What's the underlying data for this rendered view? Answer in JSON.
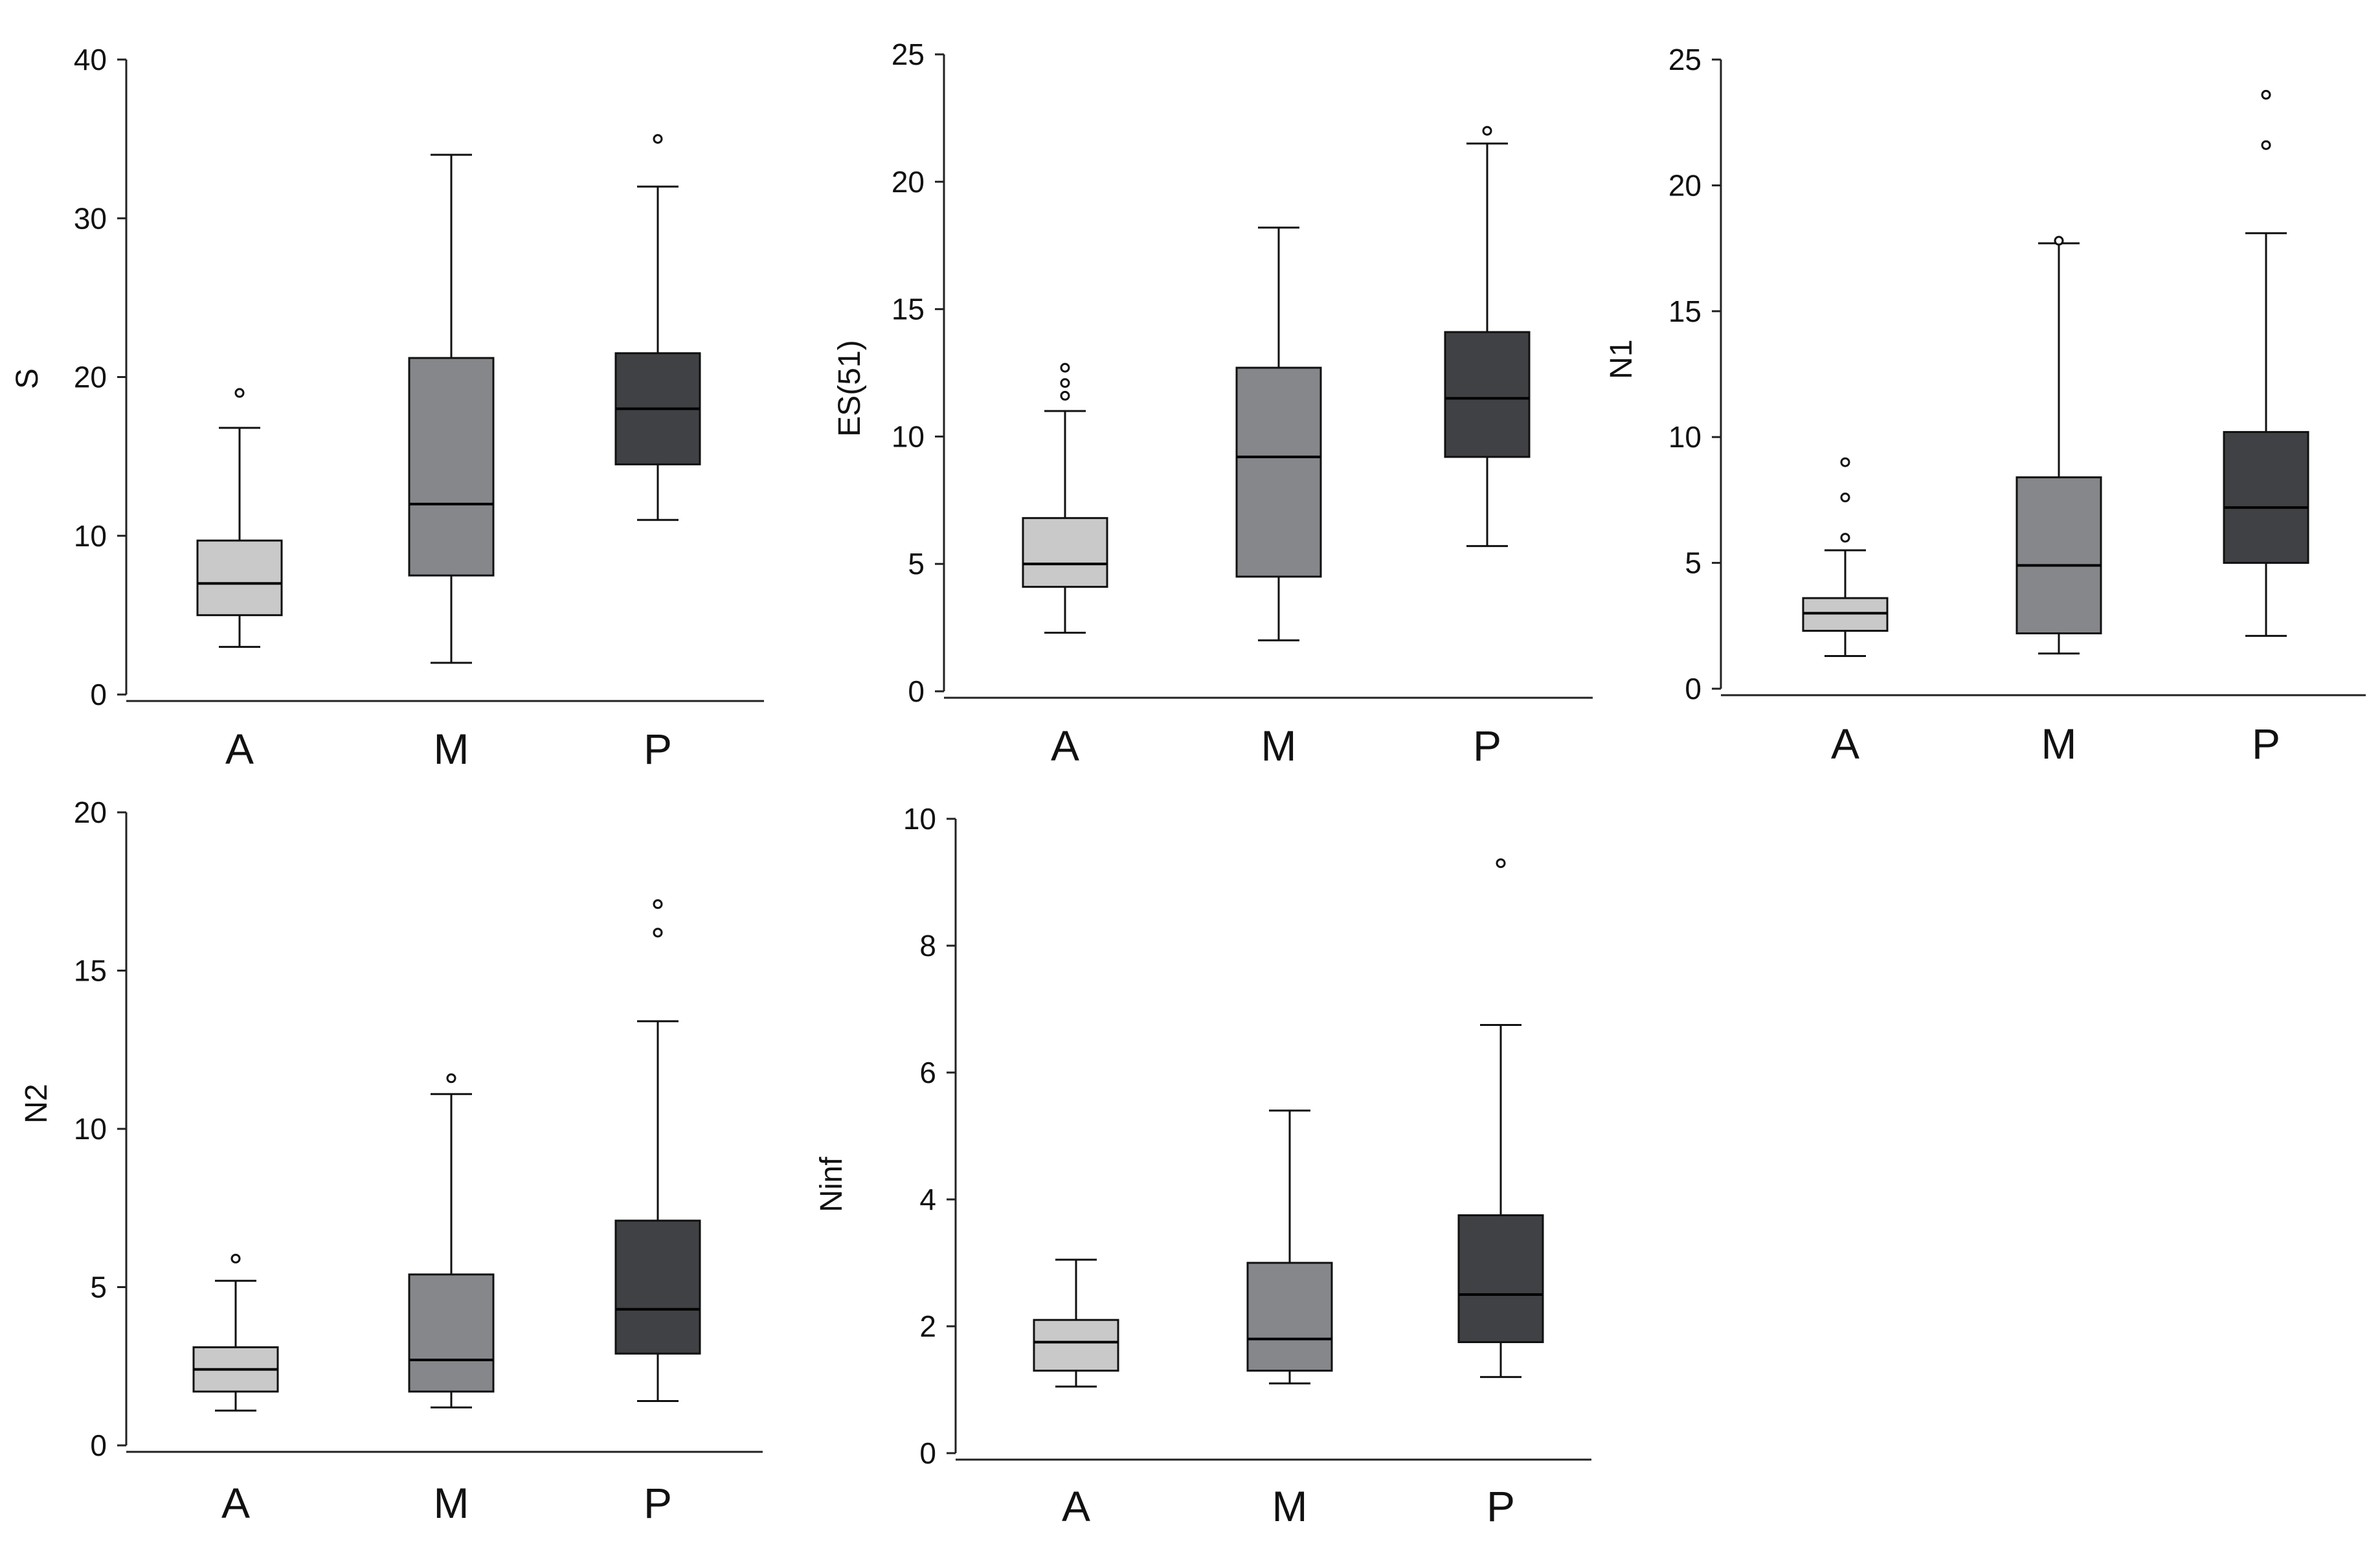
{
  "chart_data": [
    {
      "type": "box",
      "ylabel": "S",
      "ylim": [
        0,
        40
      ],
      "yticks": [
        0,
        10,
        20,
        30,
        40
      ],
      "categories": [
        "A",
        "M",
        "P"
      ],
      "boxes": [
        {
          "label": "A",
          "whisker_low": 3,
          "q1": 5,
          "median": 7,
          "q3": 9.7,
          "whisker_high": 16.8,
          "outliers": [
            19
          ],
          "color": "#c9c9c9"
        },
        {
          "label": "M",
          "whisker_low": 2,
          "q1": 7.5,
          "median": 12,
          "q3": 21.2,
          "whisker_high": 34,
          "outliers": [],
          "color": "#85878a"
        },
        {
          "label": "P",
          "whisker_low": 11,
          "q1": 14.5,
          "median": 18,
          "q3": 21.5,
          "whisker_high": 32,
          "outliers": [
            35
          ],
          "color": "#404144"
        }
      ]
    },
    {
      "type": "box",
      "ylabel": "ES(51)",
      "ylim": [
        0,
        25
      ],
      "yticks": [
        0,
        5,
        10,
        15,
        20,
        25
      ],
      "categories": [
        "A",
        "M",
        "P"
      ],
      "boxes": [
        {
          "label": "A",
          "whisker_low": 2.3,
          "q1": 4.1,
          "median": 5,
          "q3": 6.8,
          "whisker_high": 11,
          "outliers": [
            11.6,
            12.1,
            12.7
          ],
          "color": "#c9c9c9"
        },
        {
          "label": "M",
          "whisker_low": 2,
          "q1": 4.5,
          "median": 9.2,
          "q3": 12.7,
          "whisker_high": 18.2,
          "outliers": [],
          "color": "#85878a"
        },
        {
          "label": "P",
          "whisker_low": 5.7,
          "q1": 9.2,
          "median": 11.5,
          "q3": 14.1,
          "whisker_high": 21.5,
          "outliers": [
            22
          ],
          "color": "#404144"
        }
      ]
    },
    {
      "type": "box",
      "ylabel": "N1",
      "ylim": [
        0,
        25
      ],
      "yticks": [
        0,
        5,
        10,
        15,
        20,
        25
      ],
      "categories": [
        "A",
        "M",
        "P"
      ],
      "boxes": [
        {
          "label": "A",
          "whisker_low": 1.3,
          "q1": 2.3,
          "median": 3,
          "q3": 3.6,
          "whisker_high": 5.5,
          "outliers": [
            6,
            7.6,
            9
          ],
          "color": "#c9c9c9"
        },
        {
          "label": "M",
          "whisker_low": 1.4,
          "q1": 2.2,
          "median": 4.9,
          "q3": 8.4,
          "whisker_high": 17.7,
          "outliers": [
            17.8
          ],
          "color": "#85878a"
        },
        {
          "label": "P",
          "whisker_low": 2.1,
          "q1": 5,
          "median": 7.2,
          "q3": 10.2,
          "whisker_high": 18.1,
          "outliers": [
            21.6,
            23.6
          ],
          "color": "#404144"
        }
      ]
    },
    {
      "type": "box",
      "ylabel": "N2",
      "ylim": [
        0,
        20
      ],
      "yticks": [
        0,
        5,
        10,
        15,
        20
      ],
      "categories": [
        "A",
        "M",
        "P"
      ],
      "boxes": [
        {
          "label": "A",
          "whisker_low": 1.1,
          "q1": 1.7,
          "median": 2.4,
          "q3": 3.1,
          "whisker_high": 5.2,
          "outliers": [
            5.9
          ],
          "color": "#c9c9c9"
        },
        {
          "label": "M",
          "whisker_low": 1.2,
          "q1": 1.7,
          "median": 2.7,
          "q3": 5.4,
          "whisker_high": 11.1,
          "outliers": [
            11.6
          ],
          "color": "#85878a"
        },
        {
          "label": "P",
          "whisker_low": 1.4,
          "q1": 2.9,
          "median": 4.3,
          "q3": 7.1,
          "whisker_high": 13.4,
          "outliers": [
            16.2,
            17.1
          ],
          "color": "#404144"
        }
      ]
    },
    {
      "type": "box",
      "ylabel": "Ninf",
      "ylim": [
        0,
        10
      ],
      "yticks": [
        0,
        2,
        4,
        6,
        8,
        10
      ],
      "categories": [
        "A",
        "M",
        "P"
      ],
      "boxes": [
        {
          "label": "A",
          "whisker_low": 1.05,
          "q1": 1.3,
          "median": 1.75,
          "q3": 2.1,
          "whisker_high": 3.05,
          "outliers": [],
          "color": "#c9c9c9"
        },
        {
          "label": "M",
          "whisker_low": 1.1,
          "q1": 1.3,
          "median": 1.8,
          "q3": 3,
          "whisker_high": 5.4,
          "outliers": [],
          "color": "#85878a"
        },
        {
          "label": "P",
          "whisker_low": 1.2,
          "q1": 1.75,
          "median": 2.5,
          "q3": 3.75,
          "whisker_high": 6.75,
          "outliers": [
            9.3
          ],
          "color": "#404144"
        }
      ]
    }
  ]
}
